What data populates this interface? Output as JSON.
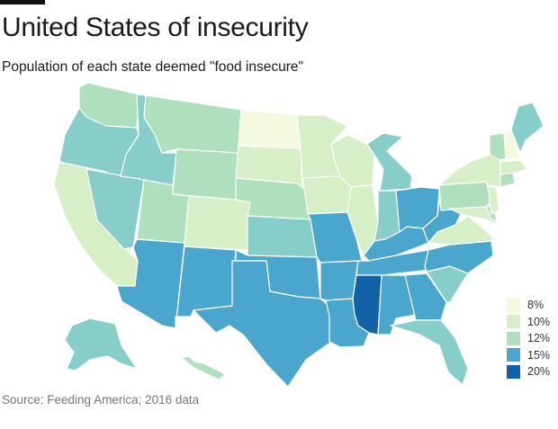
{
  "title": "United States of insecurity",
  "subtitle": "Population of each state deemed \"food insecure\"",
  "source": "Source: Feeding America; 2016 data",
  "colors": {
    "8": "#f3fadd",
    "10": "#d7efc6",
    "12": "#aee0bd",
    "13": "#87cdc9",
    "15": "#4aa6cc",
    "20": "#1260a6"
  },
  "legend": [
    {
      "label": "8%",
      "color": "#f3fadd"
    },
    {
      "label": "10%",
      "color": "#d7efc6"
    },
    {
      "label": "12%",
      "color": "#aee0bd"
    },
    {
      "label": "15%",
      "color": "#4aa6cc"
    },
    {
      "label": "20%",
      "color": "#1260a6"
    }
  ],
  "states": {
    "WA": "12",
    "OR": "13",
    "CA": "10",
    "NV": "13",
    "ID": "13",
    "MT": "12",
    "WY": "12",
    "UT": "12",
    "AZ": "15",
    "CO": "10",
    "NM": "15",
    "ND": "8",
    "SD": "10",
    "NE": "12",
    "KS": "13",
    "OK": "15",
    "TX": "15",
    "MN": "10",
    "IA": "10",
    "MO": "15",
    "AR": "15",
    "LA": "15",
    "WI": "10",
    "IL": "10",
    "MI": "13",
    "IN": "13",
    "OH": "15",
    "KY": "15",
    "TN": "15",
    "MS": "20",
    "AL": "15",
    "GA": "15",
    "FL": "13",
    "SC": "13",
    "NC": "15",
    "VA": "10",
    "WV": "15",
    "PA": "12",
    "NY": "10",
    "VT": "12",
    "NH": "8",
    "ME": "13",
    "MA": "10",
    "CT": "12",
    "NJ": "10",
    "DE": "12",
    "MD": "10",
    "AK": "13",
    "HI": "12"
  }
}
